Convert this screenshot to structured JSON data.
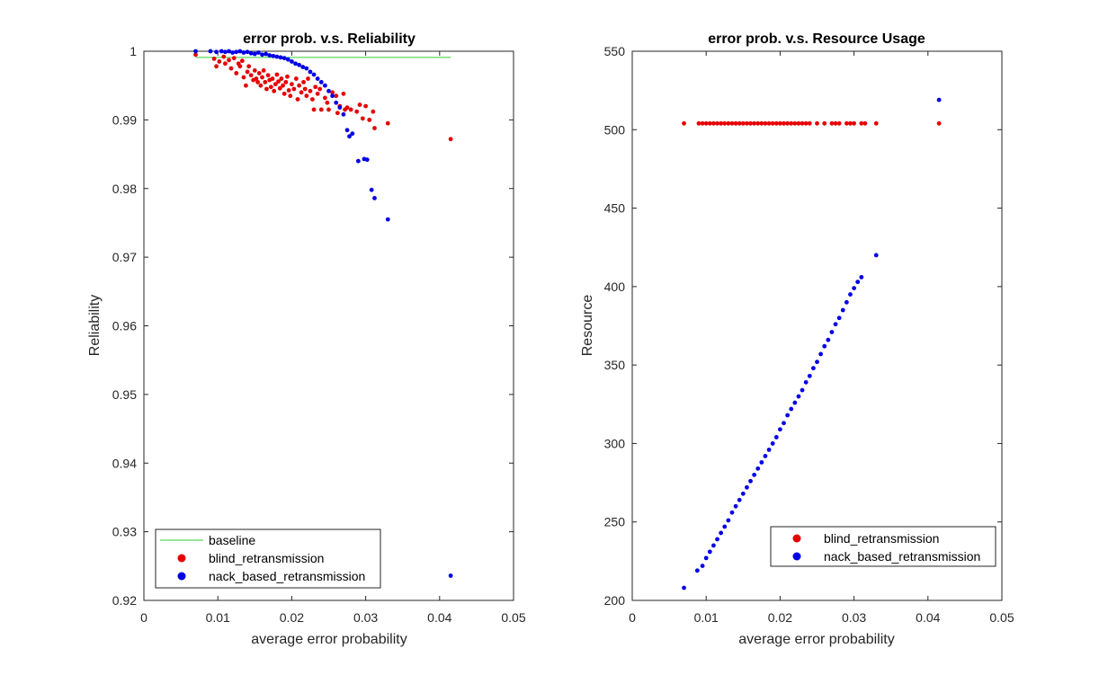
{
  "chart_data": [
    {
      "type": "scatter",
      "title": "error prob. v.s. Reliability",
      "xlabel": "average error probability",
      "ylabel": "Reliability",
      "xlim": [
        0,
        0.05
      ],
      "ylim": [
        0.92,
        1
      ],
      "xticks": [
        0,
        0.01,
        0.02,
        0.03,
        0.04,
        0.05
      ],
      "xtick_labels": [
        "0",
        "0.01",
        "0.02",
        "0.03",
        "0.04",
        "0.05"
      ],
      "yticks": [
        0.92,
        0.93,
        0.94,
        0.95,
        0.96,
        0.97,
        0.98,
        0.99,
        1
      ],
      "ytick_labels": [
        "0.92",
        "0.93",
        "0.94",
        "0.95",
        "0.96",
        "0.97",
        "0.98",
        "0.99",
        "1"
      ],
      "grid": false,
      "legend_position": "bottom-left",
      "series": [
        {
          "name": "baseline",
          "kind": "line",
          "color": "#33cc33",
          "points": [
            [
              0.007,
              0.9991
            ],
            [
              0.0415,
              0.9991
            ]
          ]
        },
        {
          "name": "blind_retransmission",
          "kind": "scatter",
          "color": "#e60000",
          "points": [
            [
              0.007,
              0.9995
            ],
            [
              0.0095,
              0.9989
            ],
            [
              0.0098,
              0.9978
            ],
            [
              0.0102,
              0.9985
            ],
            [
              0.0108,
              0.9992
            ],
            [
              0.011,
              0.9982
            ],
            [
              0.0115,
              0.9987
            ],
            [
              0.0118,
              0.9975
            ],
            [
              0.0122,
              0.999
            ],
            [
              0.0125,
              0.9968
            ],
            [
              0.0128,
              0.9982
            ],
            [
              0.013,
              0.9978
            ],
            [
              0.0133,
              0.9986
            ],
            [
              0.0135,
              0.9962
            ],
            [
              0.0138,
              0.995
            ],
            [
              0.014,
              0.997
            ],
            [
              0.0142,
              0.9978
            ],
            [
              0.0145,
              0.9965
            ],
            [
              0.0148,
              0.9958
            ],
            [
              0.015,
              0.9972
            ],
            [
              0.0152,
              0.996
            ],
            [
              0.0154,
              0.9955
            ],
            [
              0.0156,
              0.9968
            ],
            [
              0.0158,
              0.995
            ],
            [
              0.016,
              0.9962
            ],
            [
              0.0162,
              0.9972
            ],
            [
              0.0164,
              0.9955
            ],
            [
              0.0166,
              0.9945
            ],
            [
              0.0168,
              0.9965
            ],
            [
              0.017,
              0.9958
            ],
            [
              0.0172,
              0.9948
            ],
            [
              0.0174,
              0.996
            ],
            [
              0.0176,
              0.9942
            ],
            [
              0.0178,
              0.9952
            ],
            [
              0.018,
              0.9966
            ],
            [
              0.0182,
              0.9956
            ],
            [
              0.0184,
              0.9946
            ],
            [
              0.0186,
              0.996
            ],
            [
              0.0188,
              0.995
            ],
            [
              0.019,
              0.9938
            ],
            [
              0.0192,
              0.9955
            ],
            [
              0.0194,
              0.9963
            ],
            [
              0.0196,
              0.9943
            ],
            [
              0.0198,
              0.9935
            ],
            [
              0.02,
              0.9952
            ],
            [
              0.0203,
              0.9945
            ],
            [
              0.0206,
              0.996
            ],
            [
              0.0208,
              0.993
            ],
            [
              0.021,
              0.995
            ],
            [
              0.0213,
              0.994
            ],
            [
              0.0216,
              0.9955
            ],
            [
              0.0218,
              0.9945
            ],
            [
              0.022,
              0.9935
            ],
            [
              0.0222,
              0.996
            ],
            [
              0.0225,
              0.9942
            ],
            [
              0.0228,
              0.993
            ],
            [
              0.023,
              0.9915
            ],
            [
              0.0232,
              0.9948
            ],
            [
              0.0235,
              0.9938
            ],
            [
              0.0238,
              0.9945
            ],
            [
              0.024,
              0.9915
            ],
            [
              0.0245,
              0.9932
            ],
            [
              0.0248,
              0.9925
            ],
            [
              0.025,
              0.9915
            ],
            [
              0.0255,
              0.994
            ],
            [
              0.026,
              0.9935
            ],
            [
              0.0262,
              0.991
            ],
            [
              0.0265,
              0.992
            ],
            [
              0.027,
              0.9938
            ],
            [
              0.0272,
              0.9915
            ],
            [
              0.0275,
              0.9918
            ],
            [
              0.028,
              0.9915
            ],
            [
              0.0288,
              0.9912
            ],
            [
              0.0292,
              0.9922
            ],
            [
              0.0296,
              0.9902
            ],
            [
              0.03,
              0.992
            ],
            [
              0.0305,
              0.99
            ],
            [
              0.031,
              0.9912
            ],
            [
              0.0312,
              0.9888
            ],
            [
              0.033,
              0.9895
            ],
            [
              0.0415,
              0.9872
            ]
          ]
        },
        {
          "name": "nack_based_retransmission",
          "kind": "scatter",
          "color": "#0000e6",
          "points": [
            [
              0.007,
              1.0
            ],
            [
              0.009,
              1.0
            ],
            [
              0.0098,
              0.9999
            ],
            [
              0.0105,
              1.0
            ],
            [
              0.011,
              0.9999
            ],
            [
              0.0115,
              1.0
            ],
            [
              0.012,
              0.9998
            ],
            [
              0.0125,
              0.9999
            ],
            [
              0.013,
              1.0
            ],
            [
              0.0135,
              0.9998
            ],
            [
              0.014,
              0.9999
            ],
            [
              0.0145,
              0.9997
            ],
            [
              0.015,
              0.9996
            ],
            [
              0.0155,
              0.9998
            ],
            [
              0.016,
              0.9995
            ],
            [
              0.0165,
              0.9996
            ],
            [
              0.017,
              0.9994
            ],
            [
              0.0175,
              0.9993
            ],
            [
              0.018,
              0.9992
            ],
            [
              0.0185,
              0.9991
            ],
            [
              0.019,
              0.999
            ],
            [
              0.0195,
              0.9988
            ],
            [
              0.02,
              0.9985
            ],
            [
              0.0205,
              0.9982
            ],
            [
              0.021,
              0.998
            ],
            [
              0.0215,
              0.9977
            ],
            [
              0.022,
              0.9975
            ],
            [
              0.0225,
              0.997
            ],
            [
              0.023,
              0.9966
            ],
            [
              0.0235,
              0.996
            ],
            [
              0.024,
              0.9955
            ],
            [
              0.0245,
              0.995
            ],
            [
              0.025,
              0.9942
            ],
            [
              0.0255,
              0.9935
            ],
            [
              0.026,
              0.9925
            ],
            [
              0.0265,
              0.9918
            ],
            [
              0.027,
              0.9908
            ],
            [
              0.0275,
              0.9885
            ],
            [
              0.0278,
              0.9876
            ],
            [
              0.0282,
              0.988
            ],
            [
              0.029,
              0.984
            ],
            [
              0.0298,
              0.9843
            ],
            [
              0.0302,
              0.9842
            ],
            [
              0.0308,
              0.9798
            ],
            [
              0.0312,
              0.9786
            ],
            [
              0.033,
              0.9755
            ],
            [
              0.0415,
              0.9236
            ]
          ]
        }
      ]
    },
    {
      "type": "scatter",
      "title": "error prob. v.s. Resource Usage",
      "xlabel": "average error probability",
      "ylabel": "Resource",
      "xlim": [
        0,
        0.05
      ],
      "ylim": [
        200,
        550
      ],
      "xticks": [
        0,
        0.01,
        0.02,
        0.03,
        0.04,
        0.05
      ],
      "xtick_labels": [
        "0",
        "0.01",
        "0.02",
        "0.03",
        "0.04",
        "0.05"
      ],
      "yticks": [
        200,
        250,
        300,
        350,
        400,
        450,
        500,
        550
      ],
      "ytick_labels": [
        "200",
        "250",
        "300",
        "350",
        "400",
        "450",
        "500",
        "550"
      ],
      "grid": false,
      "legend_position": "bottom-right",
      "series": [
        {
          "name": "blind_retransmission",
          "kind": "scatter",
          "color": "#e60000",
          "points": [
            [
              0.007,
              504
            ],
            [
              0.009,
              504
            ],
            [
              0.0095,
              504
            ],
            [
              0.01,
              504
            ],
            [
              0.0105,
              504
            ],
            [
              0.011,
              504
            ],
            [
              0.0115,
              504
            ],
            [
              0.012,
              504
            ],
            [
              0.0125,
              504
            ],
            [
              0.013,
              504
            ],
            [
              0.0135,
              504
            ],
            [
              0.014,
              504
            ],
            [
              0.0145,
              504
            ],
            [
              0.015,
              504
            ],
            [
              0.0155,
              504
            ],
            [
              0.016,
              504
            ],
            [
              0.0165,
              504
            ],
            [
              0.017,
              504
            ],
            [
              0.0175,
              504
            ],
            [
              0.018,
              504
            ],
            [
              0.0185,
              504
            ],
            [
              0.019,
              504
            ],
            [
              0.0195,
              504
            ],
            [
              0.02,
              504
            ],
            [
              0.0205,
              504
            ],
            [
              0.021,
              504
            ],
            [
              0.0215,
              504
            ],
            [
              0.022,
              504
            ],
            [
              0.0225,
              504
            ],
            [
              0.023,
              504
            ],
            [
              0.0235,
              504
            ],
            [
              0.024,
              504
            ],
            [
              0.025,
              504
            ],
            [
              0.026,
              504
            ],
            [
              0.027,
              504
            ],
            [
              0.0275,
              504
            ],
            [
              0.028,
              504
            ],
            [
              0.029,
              504
            ],
            [
              0.0295,
              504
            ],
            [
              0.03,
              504
            ],
            [
              0.031,
              504
            ],
            [
              0.0315,
              504
            ],
            [
              0.033,
              504
            ],
            [
              0.0415,
              504
            ]
          ]
        },
        {
          "name": "nack_based_retransmission",
          "kind": "scatter",
          "color": "#0000e6",
          "points": [
            [
              0.007,
              208
            ],
            [
              0.0088,
              219
            ],
            [
              0.0095,
              222
            ],
            [
              0.01,
              227
            ],
            [
              0.0105,
              231
            ],
            [
              0.011,
              235
            ],
            [
              0.0115,
              239
            ],
            [
              0.012,
              243
            ],
            [
              0.0125,
              247
            ],
            [
              0.013,
              251
            ],
            [
              0.0135,
              256
            ],
            [
              0.014,
              260
            ],
            [
              0.0145,
              264
            ],
            [
              0.015,
              268
            ],
            [
              0.0155,
              272
            ],
            [
              0.016,
              276
            ],
            [
              0.0165,
              280
            ],
            [
              0.017,
              284
            ],
            [
              0.0175,
              288
            ],
            [
              0.018,
              292
            ],
            [
              0.0185,
              296
            ],
            [
              0.019,
              300
            ],
            [
              0.0195,
              304
            ],
            [
              0.02,
              309
            ],
            [
              0.0205,
              313
            ],
            [
              0.021,
              318
            ],
            [
              0.0215,
              322
            ],
            [
              0.022,
              326
            ],
            [
              0.0225,
              330
            ],
            [
              0.023,
              334
            ],
            [
              0.0235,
              339
            ],
            [
              0.024,
              343
            ],
            [
              0.0245,
              348
            ],
            [
              0.025,
              352
            ],
            [
              0.0255,
              357
            ],
            [
              0.026,
              362
            ],
            [
              0.0265,
              366
            ],
            [
              0.027,
              371
            ],
            [
              0.0275,
              376
            ],
            [
              0.028,
              380
            ],
            [
              0.0285,
              385
            ],
            [
              0.029,
              390
            ],
            [
              0.0295,
              395
            ],
            [
              0.03,
              399
            ],
            [
              0.0305,
              403
            ],
            [
              0.031,
              406
            ],
            [
              0.033,
              420
            ],
            [
              0.0415,
              519
            ]
          ]
        }
      ]
    }
  ]
}
